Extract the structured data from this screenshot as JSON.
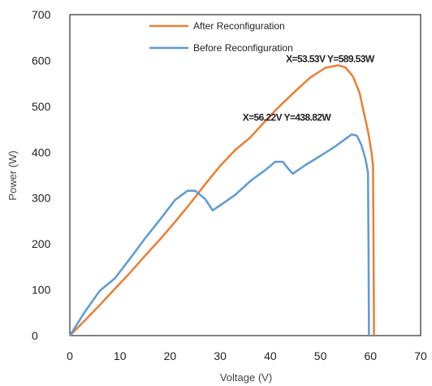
{
  "chart_data": {
    "type": "line",
    "title": "",
    "xlabel": "Voltage (V)",
    "ylabel": "Power (W)",
    "xlim": [
      0,
      70
    ],
    "ylim": [
      0,
      700
    ],
    "x_ticks": [
      0,
      10,
      20,
      30,
      40,
      50,
      60,
      70
    ],
    "y_ticks": [
      0,
      100,
      200,
      300,
      400,
      500,
      600,
      700
    ],
    "grid": false,
    "legend_position": "top-center",
    "series": [
      {
        "name": "After Reconfiguration",
        "color": "#ED7D31",
        "points": [
          [
            0,
            0
          ],
          [
            3,
            33
          ],
          [
            6,
            67
          ],
          [
            9,
            102
          ],
          [
            12,
            137
          ],
          [
            15,
            174
          ],
          [
            18,
            210
          ],
          [
            21,
            248
          ],
          [
            24,
            288
          ],
          [
            27,
            330
          ],
          [
            30,
            370
          ],
          [
            33,
            405
          ],
          [
            36,
            432
          ],
          [
            39,
            468
          ],
          [
            42,
            502
          ],
          [
            45,
            533
          ],
          [
            48,
            563
          ],
          [
            51,
            584
          ],
          [
            53.53,
            589.53
          ],
          [
            55,
            585
          ],
          [
            56.5,
            565
          ],
          [
            57.8,
            530
          ],
          [
            58.8,
            480
          ],
          [
            59.6,
            440
          ],
          [
            60.2,
            400
          ],
          [
            60.5,
            370
          ],
          [
            60.6,
            200
          ],
          [
            60.7,
            0
          ]
        ]
      },
      {
        "name": "Before Reconfiguration",
        "color": "#5B9BD5",
        "points": [
          [
            0,
            0
          ],
          [
            3,
            52
          ],
          [
            6,
            98
          ],
          [
            9,
            125
          ],
          [
            12,
            168
          ],
          [
            15,
            212
          ],
          [
            18,
            253
          ],
          [
            21,
            296
          ],
          [
            23.5,
            316
          ],
          [
            25,
            316
          ],
          [
            27,
            298
          ],
          [
            28.5,
            273
          ],
          [
            30,
            284
          ],
          [
            33,
            307
          ],
          [
            36,
            337
          ],
          [
            39,
            361
          ],
          [
            41,
            379
          ],
          [
            42.5,
            379
          ],
          [
            43.5,
            365
          ],
          [
            44.5,
            353
          ],
          [
            47,
            372
          ],
          [
            50,
            392
          ],
          [
            53,
            413
          ],
          [
            56.22,
            438.82
          ],
          [
            57.3,
            436
          ],
          [
            58.2,
            415
          ],
          [
            59,
            385
          ],
          [
            59.5,
            355
          ],
          [
            59.6,
            200
          ],
          [
            59.7,
            0
          ]
        ]
      }
    ],
    "annotations": [
      {
        "text": "X=53.53V Y=589.53W",
        "x": 53.53,
        "y": 589.53
      },
      {
        "text": "X=56.22V Y=438.82W",
        "x": 56.22,
        "y": 438.82
      }
    ]
  }
}
